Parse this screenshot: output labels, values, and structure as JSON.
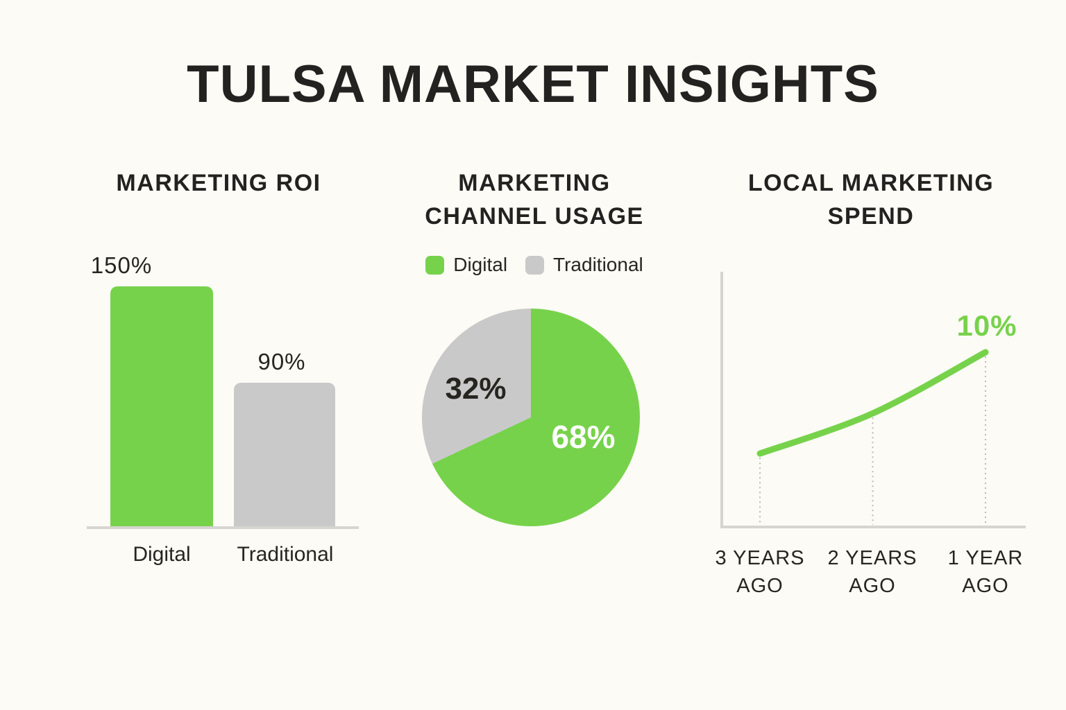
{
  "page": {
    "title": "TULSA MARKET INSIGHTS",
    "background_color": "#fcfbf5"
  },
  "colors": {
    "green": "#77d24b",
    "gray": "#c9c9c9",
    "text_dark": "#26251f",
    "axis_gray": "#d6d5d0",
    "dotted_gray": "#b9b8b2",
    "white": "#ffffff"
  },
  "chart_data": [
    {
      "type": "bar",
      "title": "MARKETING ROI",
      "categories": [
        "Digital",
        "Traditional"
      ],
      "values": [
        150,
        90
      ],
      "value_labels": [
        "150%",
        "90%"
      ],
      "unit": "%",
      "ylim": [
        0,
        150
      ],
      "bar_colors": [
        "#77d24b",
        "#c9c9c9"
      ],
      "grid": false,
      "baseline": true
    },
    {
      "type": "pie",
      "title": "MARKETING CHANNEL USAGE",
      "legend": [
        "Digital",
        "Traditional"
      ],
      "legend_position": "top",
      "start_angle": "top",
      "direction": "clockwise",
      "slices": [
        {
          "label": "Digital",
          "value": 68,
          "pct_label": "68%",
          "color": "#77d24b",
          "label_color": "#ffffff"
        },
        {
          "label": "Traditional",
          "value": 32,
          "pct_label": "32%",
          "color": "#c9c9c9",
          "label_color": "#26251f"
        }
      ]
    },
    {
      "type": "line",
      "title": "LOCAL MARKETING SPEND",
      "categories": [
        "3 YEARS AGO",
        "2 YEARS AGO",
        "1 YEAR AGO"
      ],
      "values": [
        4.2,
        6.5,
        10
      ],
      "unit": "%",
      "ylim": [
        0,
        10.8
      ],
      "line_color": "#77d24b",
      "annotation": {
        "text": "10%",
        "point_index": 2,
        "color": "#77d24b"
      },
      "grid": false
    }
  ]
}
